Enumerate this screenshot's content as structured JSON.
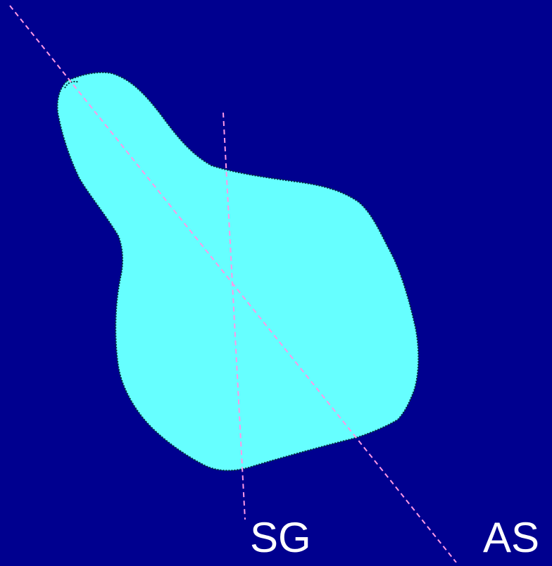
{
  "labels": {
    "sg": "SG",
    "as": "AS"
  },
  "colors": {
    "background": "#00008f",
    "shape_fill": "#66ffff",
    "shape_outline": "#00333a",
    "axis_line": "#ff99e6",
    "label_text": "#ffffff"
  }
}
